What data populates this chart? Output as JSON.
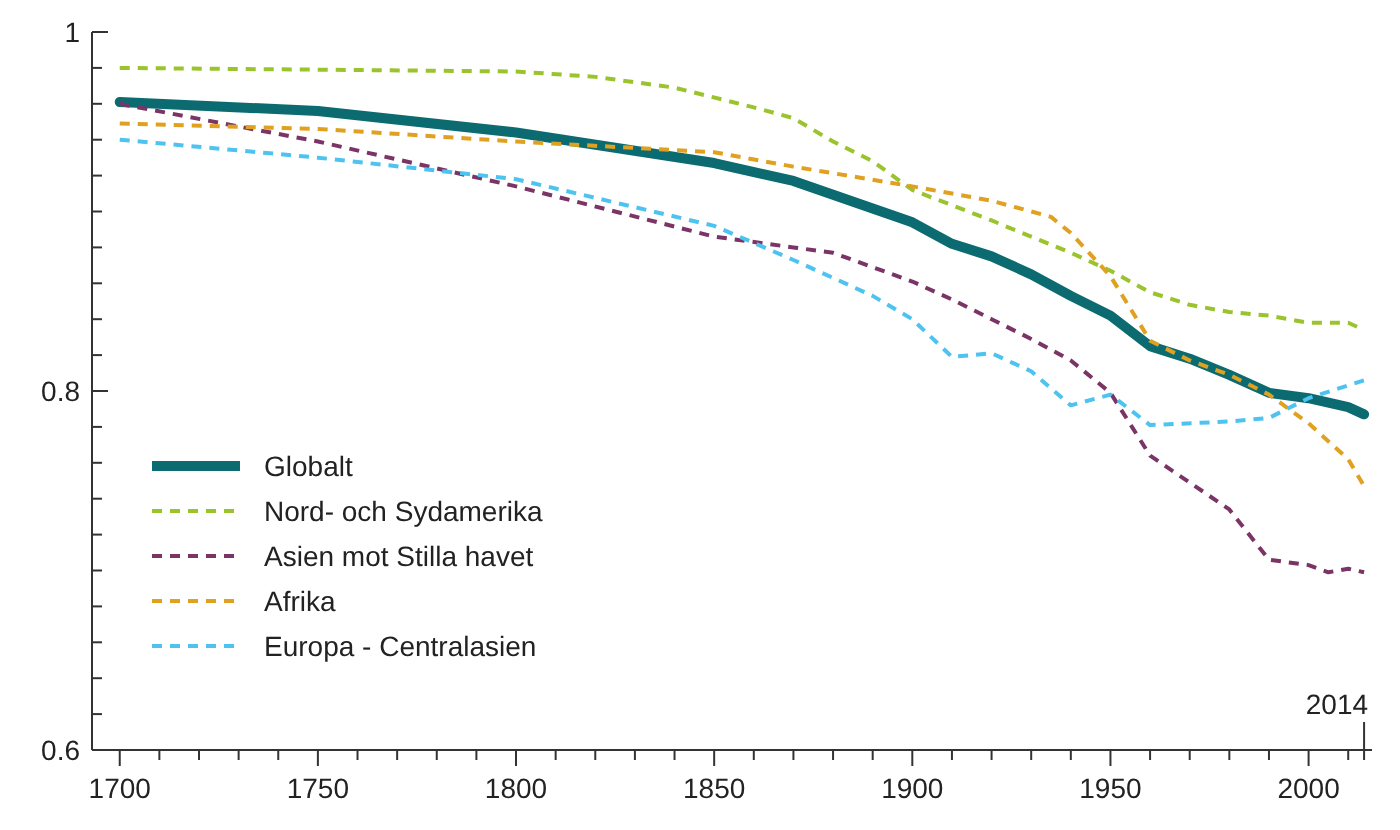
{
  "chart_data": {
    "type": "line",
    "x": [
      1700,
      1750,
      1800,
      1850,
      1870,
      1900,
      1910,
      1920,
      1930,
      1940,
      1950,
      1960,
      1970,
      1980,
      1990,
      2000,
      2010,
      2014
    ],
    "xlim": [
      1693,
      2016
    ],
    "ylim": [
      0.6,
      1
    ],
    "xticks": [
      1700,
      {
        "value": 1710,
        "label": null
      },
      {
        "value": 1720,
        "label": null
      },
      {
        "value": 1730,
        "label": null
      },
      {
        "value": 1740,
        "label": null
      },
      1750,
      {
        "value": 1760,
        "label": null
      },
      {
        "value": 1770,
        "label": null
      },
      {
        "value": 1780,
        "label": null
      },
      {
        "value": 1790,
        "label": null
      },
      1800,
      {
        "value": 1810,
        "label": null
      },
      {
        "value": 1820,
        "label": null
      },
      {
        "value": 1830,
        "label": null
      },
      {
        "value": 1840,
        "label": null
      },
      1850,
      {
        "value": 1860,
        "label": null
      },
      {
        "value": 1870,
        "label": null
      },
      {
        "value": 1880,
        "label": null
      },
      {
        "value": 1890,
        "label": null
      },
      1900,
      {
        "value": 1910,
        "label": null
      },
      {
        "value": 1920,
        "label": null
      },
      {
        "value": 1930,
        "label": null
      },
      {
        "value": 1940,
        "label": null
      },
      1950,
      {
        "value": 1960,
        "label": null
      },
      {
        "value": 1970,
        "label": null
      },
      {
        "value": 1980,
        "label": null
      },
      {
        "value": 1990,
        "label": null
      },
      2000,
      {
        "value": 2010,
        "label": null
      },
      {
        "value": 2014,
        "label": null
      }
    ],
    "annotations": [
      "2014"
    ],
    "yticks": [
      0.6,
      {
        "value": 0.62,
        "label": null
      },
      {
        "value": 0.64,
        "label": null
      },
      {
        "value": 0.66,
        "label": null
      },
      {
        "value": 0.68,
        "label": null
      },
      {
        "value": 0.7,
        "label": null
      },
      {
        "value": 0.72,
        "label": null
      },
      {
        "value": 0.74,
        "label": null
      },
      {
        "value": 0.76,
        "label": null
      },
      {
        "value": 0.78,
        "label": null
      },
      0.8,
      {
        "value": 0.82,
        "label": null
      },
      {
        "value": 0.84,
        "label": null
      },
      {
        "value": 0.86,
        "label": null
      },
      {
        "value": 0.88,
        "label": null
      },
      {
        "value": 0.9,
        "label": null
      },
      {
        "value": 0.92,
        "label": null
      },
      {
        "value": 0.94,
        "label": null
      },
      {
        "value": 0.96,
        "label": null
      },
      {
        "value": 0.98,
        "label": null
      },
      1
    ],
    "grid": false,
    "legend": "bottom left",
    "marker": "none",
    "series": [
      {
        "name": "Globalt",
        "color": "#0b6b70",
        "line_style": "solid",
        "values": [
          0.961,
          0.956,
          0.944,
          0.927,
          0.917,
          0.894,
          0.882,
          0.875,
          0.865,
          0.853,
          0.842,
          0.825,
          0.818,
          0.809,
          0.799,
          0.796,
          0.791,
          0.787
        ]
      },
      {
        "name": "Nord- och Sydamerika",
        "color": "#9ac32d",
        "line_style": "dashed",
        "x": [
          1700,
          1800,
          1820,
          1840,
          1860,
          1870,
          1880,
          1890,
          1900,
          1920,
          1940,
          1950,
          1960,
          1970,
          1980,
          1990,
          2000,
          2010,
          2014
        ],
        "values": [
          0.98,
          0.978,
          0.975,
          0.969,
          0.958,
          0.952,
          0.939,
          0.928,
          0.912,
          0.895,
          0.877,
          0.867,
          0.855,
          0.848,
          0.844,
          0.842,
          0.838,
          0.838,
          0.834
        ]
      },
      {
        "name": "Asien mot Stilla havet",
        "color": "#7a3466",
        "line_style": "dashed",
        "x": [
          1700,
          1750,
          1800,
          1850,
          1870,
          1880,
          1900,
          1910,
          1920,
          1930,
          1940,
          1950,
          1960,
          1970,
          1980,
          1990,
          2000,
          2005,
          2010,
          2014
        ],
        "values": [
          0.96,
          0.939,
          0.914,
          0.886,
          0.88,
          0.877,
          0.861,
          0.851,
          0.84,
          0.829,
          0.817,
          0.799,
          0.764,
          0.749,
          0.734,
          0.706,
          0.703,
          0.699,
          0.701,
          0.699
        ]
      },
      {
        "name": "Afrika",
        "color": "#e0a020",
        "line_style": "dashed",
        "x": [
          1700,
          1750,
          1800,
          1850,
          1870,
          1900,
          1920,
          1935,
          1940,
          1950,
          1960,
          1970,
          1980,
          1990,
          2000,
          2010,
          2014
        ],
        "values": [
          0.949,
          0.946,
          0.939,
          0.933,
          0.925,
          0.914,
          0.906,
          0.897,
          0.888,
          0.864,
          0.828,
          0.817,
          0.809,
          0.798,
          0.782,
          0.762,
          0.747
        ]
      },
      {
        "name": "Europa - Centralasien",
        "color": "#4ec3f0",
        "line_style": "dashed",
        "x": [
          1700,
          1750,
          1800,
          1850,
          1870,
          1890,
          1900,
          1910,
          1920,
          1930,
          1940,
          1950,
          1960,
          1980,
          1990,
          2000,
          2014
        ],
        "values": [
          0.94,
          0.93,
          0.918,
          0.892,
          0.873,
          0.853,
          0.84,
          0.819,
          0.821,
          0.811,
          0.792,
          0.798,
          0.781,
          0.783,
          0.785,
          0.796,
          0.806
        ]
      }
    ]
  }
}
